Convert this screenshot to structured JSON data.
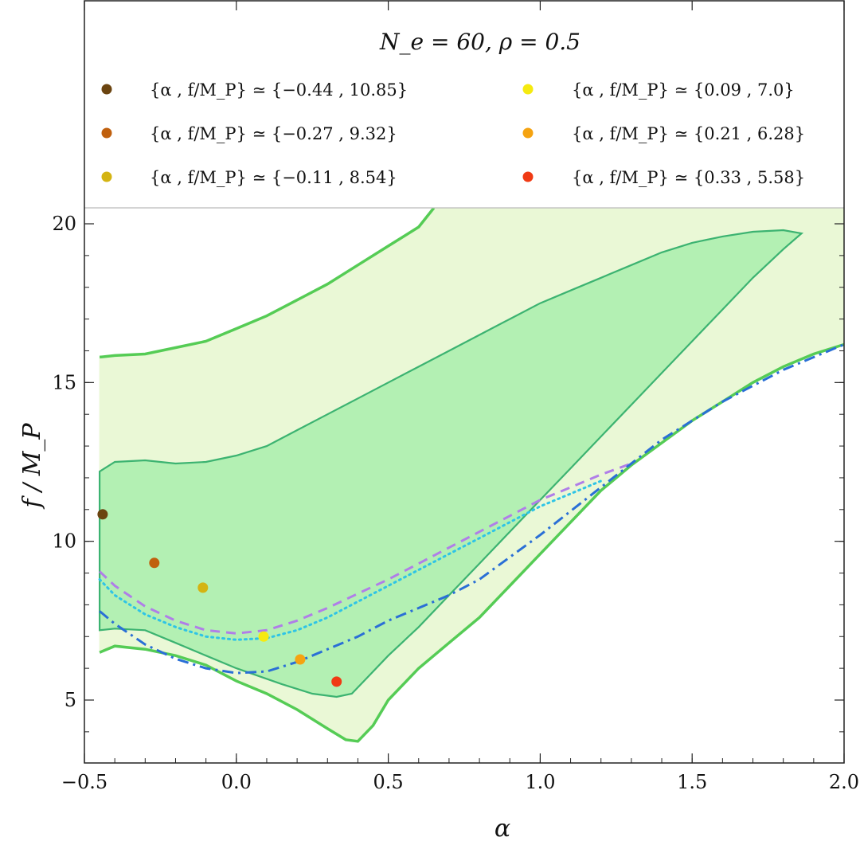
{
  "chart_data": {
    "type": "scatter",
    "title": "N_e = 60,  ρ = 0.5",
    "xlabel": "α",
    "ylabel": "f / M_P",
    "xlim": [
      -0.5,
      2.0
    ],
    "ylim": [
      3.1,
      20.5
    ],
    "x_ticks": [
      -0.5,
      0.0,
      0.5,
      1.0,
      1.5,
      2.0
    ],
    "x_tick_labels": [
      "−0.5",
      "0.0",
      "0.5",
      "1.0",
      "1.5",
      "2.0"
    ],
    "y_ticks": [
      5,
      10,
      15,
      20
    ],
    "y_tick_labels": [
      "5",
      "10",
      "15",
      "20"
    ],
    "grid": false,
    "legend_position": "top",
    "regions": [
      {
        "fill": "#eaf8d6",
        "stroke": "#55cc55",
        "upper": [
          [
            -0.45,
            15.8
          ],
          [
            -0.4,
            15.85
          ],
          [
            -0.3,
            15.9
          ],
          [
            -0.2,
            16.1
          ],
          [
            -0.1,
            16.3
          ],
          [
            0.0,
            16.7
          ],
          [
            0.1,
            17.1
          ],
          [
            0.2,
            17.6
          ],
          [
            0.3,
            18.1
          ],
          [
            0.4,
            18.7
          ],
          [
            0.5,
            19.3
          ],
          [
            0.6,
            19.9
          ],
          [
            0.65,
            20.5
          ]
        ],
        "lower": [
          [
            -0.45,
            6.5
          ],
          [
            -0.4,
            6.7
          ],
          [
            -0.3,
            6.6
          ],
          [
            -0.2,
            6.4
          ],
          [
            -0.1,
            6.1
          ],
          [
            0.0,
            5.6
          ],
          [
            0.1,
            5.2
          ],
          [
            0.2,
            4.7
          ],
          [
            0.3,
            4.1
          ],
          [
            0.36,
            3.75
          ],
          [
            0.4,
            3.7
          ],
          [
            0.45,
            4.2
          ],
          [
            0.5,
            5.0
          ],
          [
            0.6,
            6.0
          ],
          [
            0.7,
            6.8
          ],
          [
            0.8,
            7.6
          ],
          [
            0.9,
            8.6
          ],
          [
            1.0,
            9.6
          ],
          [
            1.1,
            10.6
          ],
          [
            1.2,
            11.6
          ],
          [
            1.3,
            12.4
          ],
          [
            1.4,
            13.1
          ],
          [
            1.5,
            13.8
          ],
          [
            1.6,
            14.4
          ],
          [
            1.7,
            15.0
          ],
          [
            1.8,
            15.5
          ],
          [
            1.9,
            15.9
          ],
          [
            2.0,
            16.2
          ]
        ],
        "right_upper_y": 20.5
      },
      {
        "fill": "#b3f0b3",
        "stroke": "#3cb371",
        "outline": [
          [
            -0.45,
            12.2
          ],
          [
            -0.4,
            12.5
          ],
          [
            -0.3,
            12.55
          ],
          [
            -0.2,
            12.45
          ],
          [
            -0.1,
            12.5
          ],
          [
            0.0,
            12.7
          ],
          [
            0.1,
            13.0
          ],
          [
            0.2,
            13.5
          ],
          [
            0.3,
            14.0
          ],
          [
            0.4,
            14.5
          ],
          [
            0.5,
            15.0
          ],
          [
            0.6,
            15.5
          ],
          [
            0.7,
            16.0
          ],
          [
            0.8,
            16.5
          ],
          [
            0.9,
            17.0
          ],
          [
            1.0,
            17.5
          ],
          [
            1.1,
            17.9
          ],
          [
            1.2,
            18.3
          ],
          [
            1.3,
            18.7
          ],
          [
            1.4,
            19.1
          ],
          [
            1.5,
            19.4
          ],
          [
            1.6,
            19.6
          ],
          [
            1.7,
            19.75
          ],
          [
            1.8,
            19.8
          ],
          [
            1.86,
            19.7
          ],
          [
            1.8,
            19.2
          ],
          [
            1.7,
            18.3
          ],
          [
            1.6,
            17.3
          ],
          [
            1.5,
            16.3
          ],
          [
            1.4,
            15.3
          ],
          [
            1.3,
            14.3
          ],
          [
            1.2,
            13.3
          ],
          [
            1.1,
            12.3
          ],
          [
            1.0,
            11.3
          ],
          [
            0.9,
            10.3
          ],
          [
            0.8,
            9.3
          ],
          [
            0.7,
            8.3
          ],
          [
            0.6,
            7.3
          ],
          [
            0.5,
            6.4
          ],
          [
            0.42,
            5.6
          ],
          [
            0.38,
            5.2
          ],
          [
            0.33,
            5.1
          ],
          [
            0.25,
            5.2
          ],
          [
            0.15,
            5.5
          ],
          [
            0.0,
            6.0
          ],
          [
            -0.1,
            6.4
          ],
          [
            -0.2,
            6.8
          ],
          [
            -0.3,
            7.2
          ],
          [
            -0.4,
            7.25
          ],
          [
            -0.45,
            7.2
          ]
        ]
      }
    ],
    "series": [
      {
        "style": "dashed",
        "color": "#b07ee8",
        "x": [
          -0.45,
          -0.4,
          -0.3,
          -0.2,
          -0.1,
          0.0,
          0.1,
          0.2,
          0.3,
          0.4,
          0.5,
          0.6,
          0.7,
          0.8,
          0.9,
          1.0,
          1.1,
          1.2,
          1.3
        ],
        "y": [
          9.05,
          8.6,
          7.95,
          7.5,
          7.2,
          7.1,
          7.2,
          7.5,
          7.9,
          8.35,
          8.8,
          9.3,
          9.8,
          10.3,
          10.8,
          11.3,
          11.7,
          12.1,
          12.45
        ]
      },
      {
        "style": "dotted",
        "color": "#2ec4e6",
        "x": [
          -0.45,
          -0.4,
          -0.3,
          -0.2,
          -0.1,
          0.0,
          0.1,
          0.2,
          0.3,
          0.4,
          0.5,
          0.6,
          0.7,
          0.8,
          0.9,
          1.0,
          1.1,
          1.2
        ],
        "y": [
          8.8,
          8.3,
          7.7,
          7.3,
          7.0,
          6.9,
          6.95,
          7.2,
          7.6,
          8.1,
          8.6,
          9.1,
          9.6,
          10.1,
          10.6,
          11.1,
          11.5,
          11.9
        ]
      },
      {
        "style": "dashdot",
        "color": "#2a6fd6",
        "x": [
          -0.45,
          -0.4,
          -0.3,
          -0.2,
          -0.1,
          0.0,
          0.1,
          0.2,
          0.3,
          0.4,
          0.5,
          0.6,
          0.7,
          0.8,
          0.9,
          1.0,
          1.2,
          1.4,
          1.6,
          1.8,
          2.0
        ],
        "y": [
          7.8,
          7.4,
          6.75,
          6.3,
          6.0,
          5.85,
          5.9,
          6.2,
          6.6,
          7.0,
          7.5,
          7.9,
          8.3,
          8.8,
          9.5,
          10.2,
          11.7,
          13.2,
          14.4,
          15.4,
          16.2
        ]
      }
    ],
    "points": [
      {
        "label": "{α , f/M_P} ≃ {−0.44 , 10.85}",
        "x": -0.44,
        "y": 10.85,
        "color": "#6b4410"
      },
      {
        "label": "{α , f/M_P} ≃ {−0.27 , 9.32}",
        "x": -0.27,
        "y": 9.32,
        "color": "#c0600e"
      },
      {
        "label": "{α , f/M_P} ≃ {−0.11 , 8.54}",
        "x": -0.11,
        "y": 8.54,
        "color": "#d4b412"
      },
      {
        "label": "{α , f/M_P} ≃ {0.09 , 7.0}",
        "x": 0.09,
        "y": 7.0,
        "color": "#f5ea10"
      },
      {
        "label": "{α , f/M_P} ≃ {0.21 , 6.28}",
        "x": 0.21,
        "y": 6.28,
        "color": "#f5a311"
      },
      {
        "label": "{α , f/M_P} ≃ {0.33 , 5.58}",
        "x": 0.33,
        "y": 5.58,
        "color": "#f03a14"
      }
    ]
  }
}
